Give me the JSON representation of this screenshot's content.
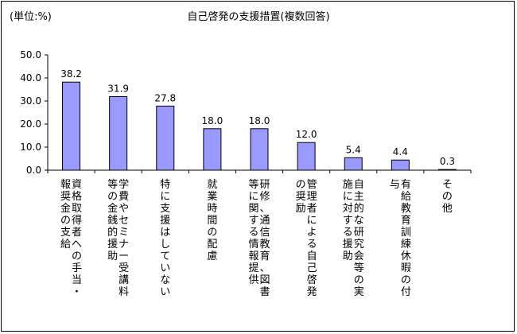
{
  "unit_label": "(単位:%)",
  "chart_data": {
    "type": "bar",
    "title": "自己啓発の支援措置(複数回答)",
    "ylim": [
      0,
      50
    ],
    "yticks": [
      "0.0",
      "10.0",
      "20.0",
      "30.0",
      "40.0",
      "50.0"
    ],
    "grid": false,
    "categories": [
      "資格取得者への手当・報奨金の支給",
      "学費やセミナー受講料等の金銭的援助",
      "特に支援はしていない",
      "就業時間の配慮",
      "研修、通信教育、図書等に関する情報提供",
      "管理者による自己啓発の奨励",
      "自主的な研究会等の実施に対する援助",
      "有給教育訓練休暇の付与",
      "その他"
    ],
    "values": [
      38.2,
      31.9,
      27.8,
      18.0,
      18.0,
      12.0,
      5.4,
      4.4,
      0.3
    ],
    "data_labels": [
      "38.2",
      "31.9",
      "27.8",
      "18.0",
      "18.0",
      "12.0",
      "5.4",
      "4.4",
      "0.3"
    ],
    "bar_color": "#9999ff",
    "bar_stroke": "#000000"
  }
}
